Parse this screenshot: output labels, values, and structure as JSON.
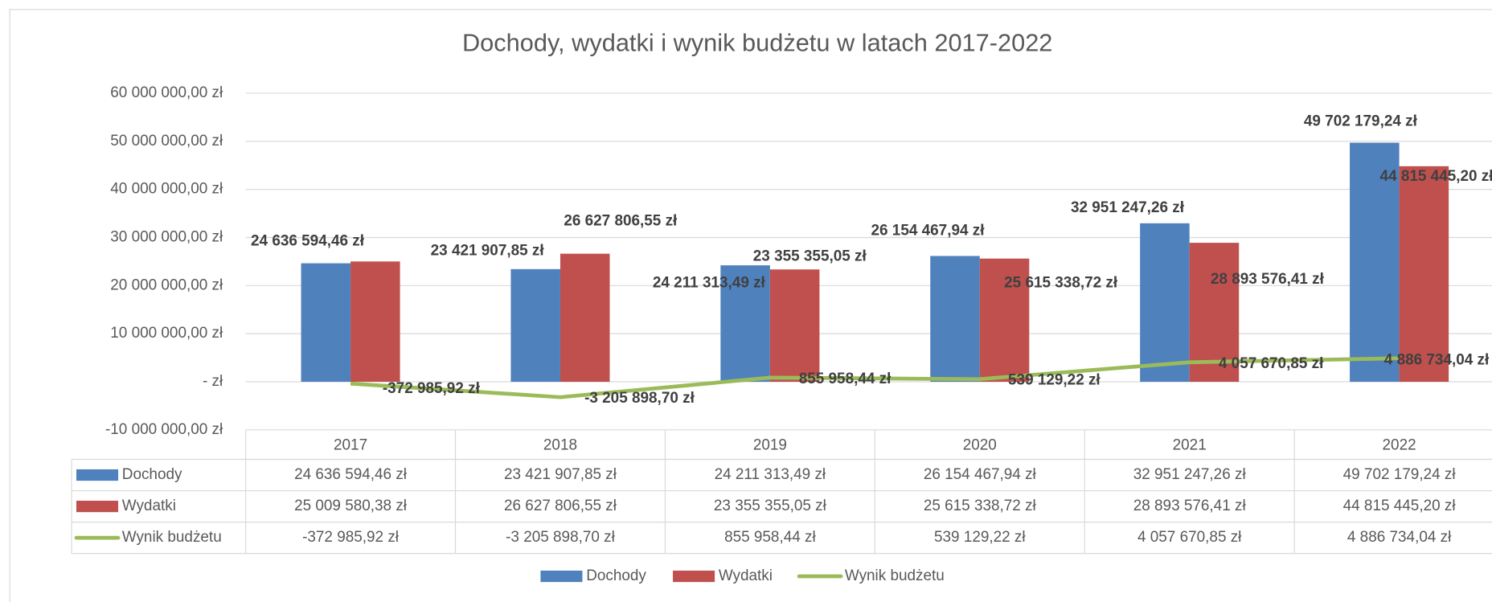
{
  "chart_data": {
    "type": "bar",
    "title": "Dochody, wydatki i wynik budżetu w latach 2017-2022",
    "categories": [
      "2017",
      "2018",
      "2019",
      "2020",
      "2021",
      "2022"
    ],
    "series": [
      {
        "name": "Dochody",
        "color": "#4f81bd",
        "type": "bar",
        "values": [
          24636594.46,
          23421907.85,
          24211313.49,
          26154467.94,
          32951247.26,
          49702179.24
        ],
        "value_labels": [
          "24 636 594,46 zł",
          "23 421 907,85 zł",
          "24 211 313,49 zł",
          "26 154 467,94 zł",
          "32 951 247,26 zł",
          "49 702 179,24 zł"
        ]
      },
      {
        "name": "Wydatki",
        "color": "#c0504d",
        "type": "bar",
        "values": [
          25009580.38,
          26627806.55,
          23355355.05,
          25615338.72,
          28893576.41,
          44815445.2
        ],
        "value_labels": [
          "25 009 580,38 zł",
          "26 627 806,55 zł",
          "23 355 355,05 zł",
          "25 615 338,72 zł",
          "28 893 576,41 zł",
          "44 815 445,20 zł"
        ]
      },
      {
        "name": "Wynik budżetu",
        "color": "#9bbb59",
        "type": "line",
        "values": [
          -372985.92,
          -3205898.7,
          855958.44,
          539129.22,
          4057670.85,
          4886734.04
        ],
        "value_labels": [
          "-372 985,92 zł",
          "-3 205 898,70 zł",
          "855 958,44 zł",
          "539 129,22 zł",
          "4 057 670,85 zł",
          "4 886 734,04 zł"
        ]
      }
    ],
    "ylim": [
      -10000000,
      60000000
    ],
    "yticks": [
      {
        "value": -10000000,
        "label": "-10 000 000,00 zł"
      },
      {
        "value": 0,
        "label": "-  zł"
      },
      {
        "value": 10000000,
        "label": "10 000 000,00 zł"
      },
      {
        "value": 20000000,
        "label": "20 000 000,00 zł"
      },
      {
        "value": 30000000,
        "label": "30 000 000,00 zł"
      },
      {
        "value": 40000000,
        "label": "40 000 000,00 zł"
      },
      {
        "value": 50000000,
        "label": "50 000 000,00 zł"
      },
      {
        "value": 60000000,
        "label": "60 000 000,00 zł"
      }
    ],
    "grid": true,
    "legend": "bottom",
    "data_table": true
  }
}
